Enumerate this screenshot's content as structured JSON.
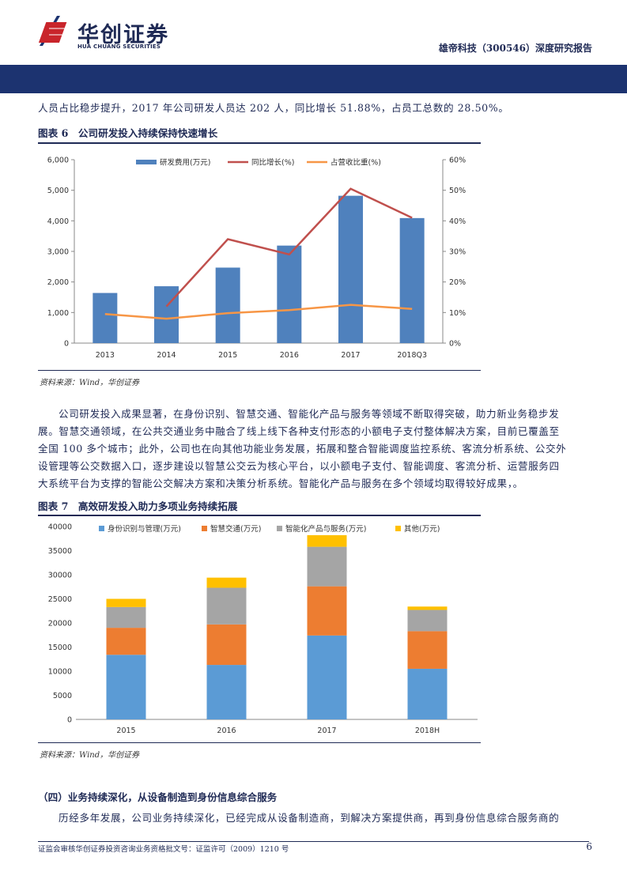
{
  "header": {
    "logo_cn": "华创证券",
    "logo_en": "HUA CHUANG SECURITIES",
    "report_title": "雄帝科技（300546）深度研究报告"
  },
  "intro_line": "人员占比稳步提升，2017 年公司研发人员达 202 人，同比增长 51.88%，占员工总数的 28.50%。",
  "figure6": {
    "title": "图表 6　公司研发投入持续保持快速增长",
    "source": "资料来源：Wind，华创证券"
  },
  "figure7": {
    "title": "图表 7　高效研发投入助力多项业务持续拓展",
    "source": "资料来源：Wind，华创证券"
  },
  "paragraph": [
    "公司研发投入成果显著，在身份识别、智慧交通、智能化产品与服务等领域不断取得突破，助力新业务稳步发",
    "展。智慧交通领域，在公共交通业务中融合了线上线下各种支付形态的小额电子支付整体解决方案，目前已覆盖至",
    "全国 100 多个城市；此外，公司也在向其他功能业务发展，拓展和整合智能调度监控系统、客流分析系统、公交外",
    "设管理等公交数据入口，逐步建设以智慧公交云为核心平台，以小额电子支付、智能调度、客流分析、运营服务四",
    "大系统平台为支撑的智能公交解决方案和决策分析系统。智能化产品与服务在多个领域均取得较好成果，。"
  ],
  "section_title": "（四）业务持续深化，从设备制造到身份信息综合服务",
  "section_para": "历经多年发展，公司业务持续深化，已经完成从设备制造商，到解决方案提供商，再到身份信息综合服务商的",
  "footer": {
    "license": "证监会审核华创证券投资咨询业务资格批文号：证监许可（2009）1210 号",
    "page": "6"
  },
  "colors": {
    "navy": "#1c3370",
    "bar_blue": "#4f81bd",
    "line_red": "#c0504d",
    "line_orange": "#f79646",
    "stack_blue": "#5b9bd5",
    "stack_orange": "#ed7d31",
    "stack_gray": "#a5a5a5",
    "stack_yellow": "#ffc000"
  },
  "chart_data": [
    {
      "type": "bar",
      "categories": [
        "2013",
        "2014",
        "2015",
        "2016",
        "2017",
        "2018Q3"
      ],
      "series": [
        {
          "name": "研发费用(万元)",
          "type": "bar",
          "axis": "left",
          "values": [
            1640,
            1860,
            2470,
            3190,
            4820,
            4090
          ]
        },
        {
          "name": "同比增长(%)",
          "type": "line",
          "axis": "right",
          "values": [
            null,
            12,
            34,
            29,
            50.5,
            41
          ]
        },
        {
          "name": "占营收比重(%)",
          "type": "line",
          "axis": "right",
          "values": [
            9.5,
            8,
            9.8,
            10.8,
            12.5,
            11.2
          ]
        }
      ],
      "y_left": {
        "ylim": [
          0,
          6000
        ],
        "ticks": [
          "0",
          "1,000",
          "2,000",
          "3,000",
          "4,000",
          "5,000",
          "6,000"
        ]
      },
      "y_right": {
        "ylim": [
          0,
          60
        ],
        "ticks": [
          "0%",
          "10%",
          "20%",
          "30%",
          "40%",
          "50%",
          "60%"
        ]
      },
      "legend_position": "top"
    },
    {
      "type": "bar",
      "stacked": true,
      "categories": [
        "2015",
        "2016",
        "2017",
        "2018H"
      ],
      "series": [
        {
          "name": "身份识别与管理(万元)",
          "values": [
            13400,
            11300,
            17400,
            10500
          ]
        },
        {
          "name": "智慧交通(万元)",
          "values": [
            5600,
            8400,
            10200,
            7800
          ]
        },
        {
          "name": "智能化产品与服务(万元)",
          "values": [
            4300,
            7600,
            8200,
            4400
          ]
        },
        {
          "name": "其他(万元)",
          "values": [
            1700,
            2100,
            2400,
            700
          ]
        }
      ],
      "ylim": [
        0,
        40000
      ],
      "y_ticks": [
        "0",
        "5000",
        "10000",
        "15000",
        "20000",
        "25000",
        "30000",
        "35000",
        "40000"
      ],
      "legend_position": "top"
    }
  ]
}
